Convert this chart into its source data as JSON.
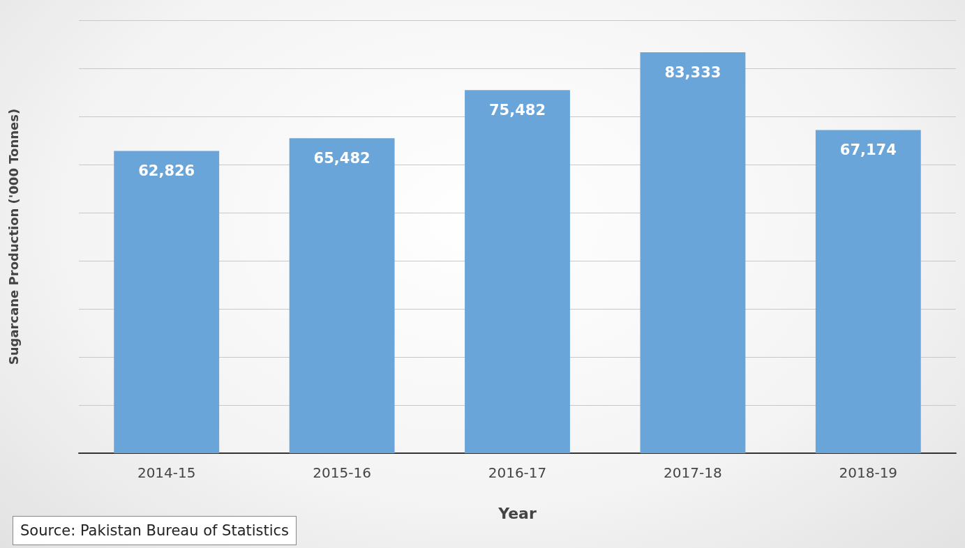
{
  "chart_data": {
    "type": "bar",
    "xlabel": "Year",
    "ylabel": "Sugarcane Production ('000 Tonnes)",
    "categories": [
      "2014-15",
      "2015-16",
      "2016-17",
      "2017-18",
      "2018-19"
    ],
    "values": [
      62826,
      65482,
      75482,
      83333,
      67174
    ],
    "value_labels": [
      "62,826",
      "65,482",
      "75,482",
      "83,333",
      "67,174"
    ],
    "color": "#6aa5da",
    "ylim": [
      0,
      90000
    ],
    "yticks": [
      {
        "value": 0,
        "label": null
      },
      {
        "value": 10000,
        "label": null
      },
      {
        "value": 20000,
        "label": null
      },
      {
        "value": 30000,
        "label": null
      },
      {
        "value": 40000,
        "label": null
      },
      {
        "value": 50000,
        "label": null
      },
      {
        "value": 60000,
        "label": null
      },
      {
        "value": 70000,
        "label": null
      },
      {
        "value": 80000,
        "label": null
      },
      {
        "value": 90000,
        "label": null
      }
    ],
    "grid": "y",
    "tick_labels": "x",
    "annotations": [
      "Source: Pakistan Bureau of Statistics"
    ]
  }
}
